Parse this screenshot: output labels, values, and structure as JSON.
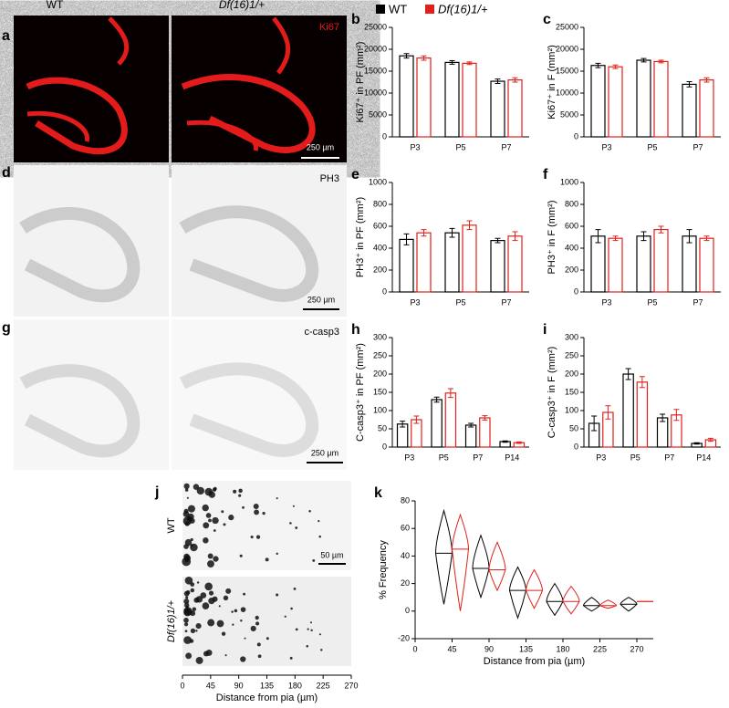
{
  "legend": [
    "WT",
    "Df(16)1/+"
  ],
  "images": {
    "columns": [
      "WT",
      "Df(16)1/+"
    ],
    "panels": [
      {
        "label": "a",
        "stain": "Ki67",
        "scale": "250 µm"
      },
      {
        "label": "d",
        "stain": "PH3",
        "scale": "250 µm"
      },
      {
        "label": "g",
        "stain": "c-casp3",
        "scale": "250 µm"
      }
    ],
    "j": {
      "label": "j",
      "rows": [
        "WT",
        "Df(16)1/+"
      ],
      "scale": "50 µm",
      "xlabel": "Distance from pia (µm)",
      "xlim": [
        0,
        270
      ],
      "xticks": [
        0,
        45,
        90,
        135,
        180,
        225,
        270
      ]
    }
  },
  "chart_data": [
    {
      "type": "bar",
      "label": "b",
      "ylabel": "Ki67⁺ in PF (mm²)",
      "categories": [
        "P3",
        "P5",
        "P7"
      ],
      "series": [
        {
          "name": "WT",
          "color": "#000000",
          "values": [
            18500,
            17000,
            12700
          ],
          "errors": [
            500,
            400,
            500
          ]
        },
        {
          "name": "Df(16)1/+",
          "color": "#e0201b",
          "values": [
            18000,
            16800,
            13000
          ],
          "errors": [
            500,
            300,
            500
          ]
        }
      ],
      "ylim": [
        0,
        25000
      ],
      "yticks": [
        0,
        5000,
        10000,
        15000,
        20000,
        25000
      ]
    },
    {
      "type": "bar",
      "label": "c",
      "ylabel": "Ki67⁺ in F (mm²)",
      "categories": [
        "P3",
        "P5",
        "P7"
      ],
      "series": [
        {
          "name": "WT",
          "color": "#000000",
          "values": [
            16300,
            17500,
            12000
          ],
          "errors": [
            500,
            400,
            600
          ]
        },
        {
          "name": "Df(16)1/+",
          "color": "#e0201b",
          "values": [
            16000,
            17200,
            13000
          ],
          "errors": [
            400,
            300,
            500
          ]
        }
      ],
      "ylim": [
        0,
        25000
      ],
      "yticks": [
        0,
        5000,
        10000,
        15000,
        20000,
        25000
      ]
    },
    {
      "type": "bar",
      "label": "e",
      "ylabel": "PH3⁺ in PF (mm²)",
      "categories": [
        "P3",
        "P5",
        "P7"
      ],
      "series": [
        {
          "name": "WT",
          "color": "#000000",
          "values": [
            480,
            540,
            470
          ],
          "errors": [
            50,
            40,
            20
          ]
        },
        {
          "name": "Df(16)1/+",
          "color": "#e0201b",
          "values": [
            540,
            610,
            510
          ],
          "errors": [
            30,
            40,
            40
          ]
        }
      ],
      "ylim": [
        0,
        1000
      ],
      "yticks": [
        0,
        200,
        400,
        600,
        800,
        1000
      ]
    },
    {
      "type": "bar",
      "label": "f",
      "ylabel": "PH3⁺ in F (mm²)",
      "categories": [
        "P3",
        "P5",
        "P7"
      ],
      "series": [
        {
          "name": "WT",
          "color": "#000000",
          "values": [
            510,
            510,
            510
          ],
          "errors": [
            60,
            40,
            60
          ]
        },
        {
          "name": "Df(16)1/+",
          "color": "#e0201b",
          "values": [
            490,
            570,
            490
          ],
          "errors": [
            20,
            30,
            20
          ]
        }
      ],
      "ylim": [
        0,
        1000
      ],
      "yticks": [
        0,
        200,
        400,
        600,
        800,
        1000
      ]
    },
    {
      "type": "bar",
      "label": "h",
      "ylabel": "C-casp3⁺ in PF (mm²)",
      "categories": [
        "P3",
        "P5",
        "P7",
        "P14"
      ],
      "series": [
        {
          "name": "WT",
          "color": "#000000",
          "values": [
            63,
            130,
            60,
            15
          ],
          "errors": [
            8,
            7,
            5,
            2
          ]
        },
        {
          "name": "Df(16)1/+",
          "color": "#e0201b",
          "values": [
            75,
            148,
            80,
            12
          ],
          "errors": [
            10,
            12,
            6,
            2
          ]
        }
      ],
      "ylim": [
        0,
        300
      ],
      "yticks": [
        0,
        50,
        100,
        150,
        200,
        250,
        300
      ]
    },
    {
      "type": "bar",
      "label": "i",
      "ylabel": "C-casp3⁺ in F (mm²)",
      "categories": [
        "P3",
        "P5",
        "P7",
        "P14"
      ],
      "series": [
        {
          "name": "WT",
          "color": "#000000",
          "values": [
            65,
            200,
            80,
            10
          ],
          "errors": [
            20,
            15,
            10,
            2
          ]
        },
        {
          "name": "Df(16)1/+",
          "color": "#e0201b",
          "values": [
            95,
            178,
            88,
            20
          ],
          "errors": [
            18,
            15,
            15,
            4
          ]
        }
      ],
      "ylim": [
        0,
        300
      ],
      "yticks": [
        0,
        50,
        100,
        150,
        200,
        250,
        300
      ]
    },
    {
      "type": "violin",
      "label": "k",
      "ylabel": "% Frequency",
      "xlabel": "Distance from pia (µm)",
      "x": [
        45,
        90,
        135,
        180,
        225,
        270
      ],
      "series": [
        {
          "name": "WT",
          "color": "#000000",
          "medians": [
            42,
            31,
            15,
            7,
            4,
            5
          ],
          "min": [
            5,
            10,
            -5,
            -3,
            0,
            0
          ],
          "max": [
            73,
            55,
            32,
            20,
            10,
            10
          ]
        },
        {
          "name": "Df(16)1/+",
          "color": "#e0201b",
          "medians": [
            45,
            30,
            15,
            7,
            4,
            7
          ],
          "min": [
            0,
            15,
            2,
            -2,
            2,
            7
          ],
          "max": [
            70,
            50,
            30,
            18,
            8,
            7
          ]
        }
      ],
      "xlim": [
        0,
        290
      ],
      "xticks": [
        0,
        45,
        90,
        135,
        180,
        225,
        270
      ],
      "ylim": [
        -20,
        80
      ],
      "yticks": [
        -20,
        0,
        20,
        40,
        60,
        80
      ]
    }
  ]
}
